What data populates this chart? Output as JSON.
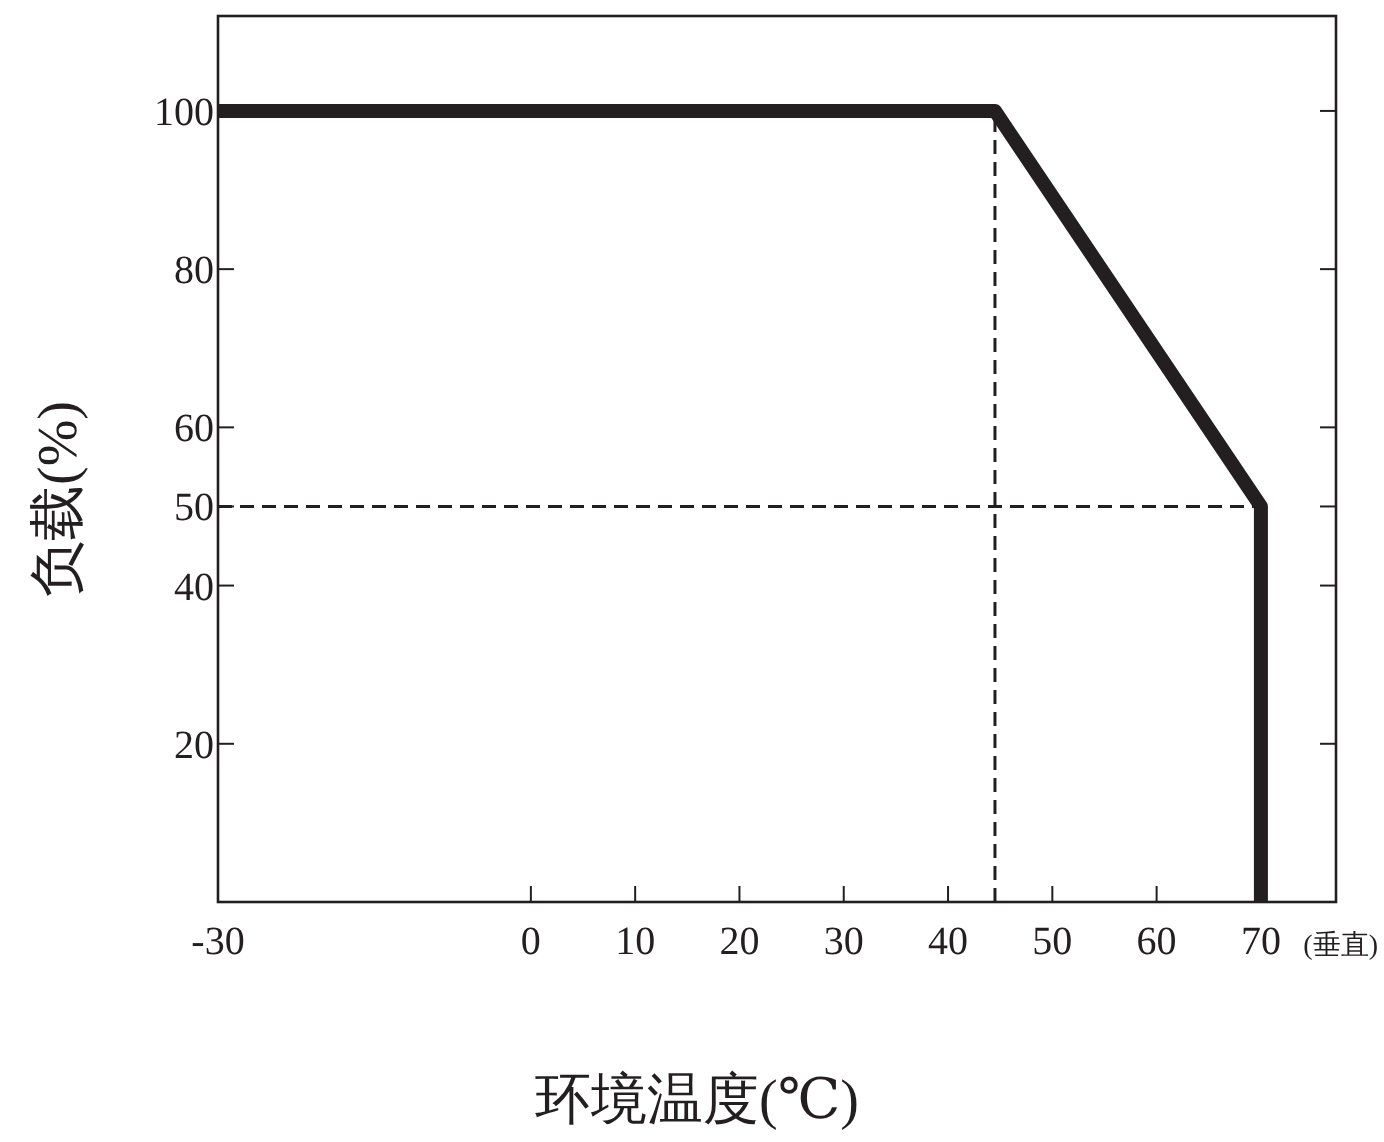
{
  "chart_data": {
    "type": "line",
    "xlabel": "环境温度(℃)",
    "ylabel": "负载(%)",
    "annotations": [
      "(垂直)"
    ],
    "x": [
      -30,
      44.5,
      70,
      70
    ],
    "series": [
      {
        "color": "#231f20",
        "values": [
          100,
          100,
          50,
          0
        ]
      }
    ],
    "xlim": [
      -30,
      77.2
    ],
    "ylim": [
      0,
      112
    ],
    "xticks": [
      -30,
      0,
      10,
      20,
      30,
      40,
      50,
      60,
      70
    ],
    "yticks": [
      20,
      40,
      50,
      60,
      80,
      100
    ],
    "ref_lines": [
      {
        "axis": "x",
        "value": 44.5,
        "line_style": "dashed",
        "color": "#231f20"
      },
      {
        "axis": "y",
        "value": 50,
        "line_style": "dashed",
        "color": "#231f20"
      }
    ],
    "grid": false,
    "marker": "none",
    "line_style": "solid"
  }
}
